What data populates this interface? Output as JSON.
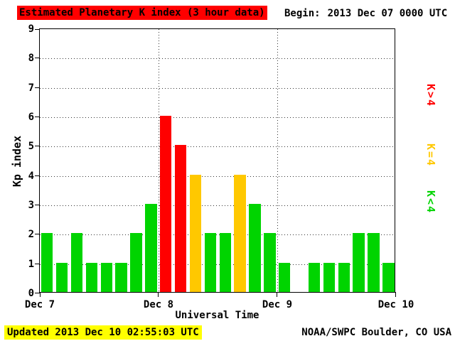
{
  "header": {
    "title": "Estimated Planetary K index (3 hour data)",
    "begin_label": "Begin:",
    "begin_value": "2013 Dec 07 0000 UTC"
  },
  "axes": {
    "ylabel": "Kp index",
    "xlabel": "Universal Time"
  },
  "legend": [
    {
      "label": "K>4",
      "color": "#ff0000"
    },
    {
      "label": "K=4",
      "color": "#ffc800"
    },
    {
      "label": "K<4",
      "color": "#00d400"
    }
  ],
  "footer": {
    "updated": "Updated 2013 Dec 10 02:55:03 UTC",
    "source": "NOAA/SWPC Boulder, CO USA"
  },
  "colors": {
    "title_bg": "#ff0000",
    "updated_bg": "#ffff00"
  },
  "chart_data": {
    "type": "bar",
    "title": "Estimated Planetary K index (3 hour data)",
    "xlabel": "Universal Time",
    "ylabel": "Kp index",
    "ylim": [
      0,
      9
    ],
    "y_ticks": [
      0,
      1,
      2,
      3,
      4,
      5,
      6,
      7,
      8,
      9
    ],
    "x_ticks": [
      "Dec 7",
      "Dec 8",
      "Dec 9",
      "Dec 10"
    ],
    "bin_hours": 3,
    "grid": "dotted horizontal lines at each integer, dotted vertical lines at day boundaries",
    "legend_position": "right",
    "days": [
      {
        "date": "2013 Dec 07",
        "kp": [
          2,
          1,
          2,
          1,
          1,
          1,
          2,
          3
        ]
      },
      {
        "date": "2013 Dec 08",
        "kp": [
          6,
          5,
          4,
          2,
          2,
          4,
          3,
          2
        ]
      },
      {
        "date": "2013 Dec 09",
        "kp": [
          1,
          0,
          1,
          1,
          1,
          2,
          2,
          1
        ]
      }
    ],
    "color_rule": {
      "gt4": "#ff0000",
      "eq4": "#ffc800",
      "lt4": "#00d400"
    }
  }
}
